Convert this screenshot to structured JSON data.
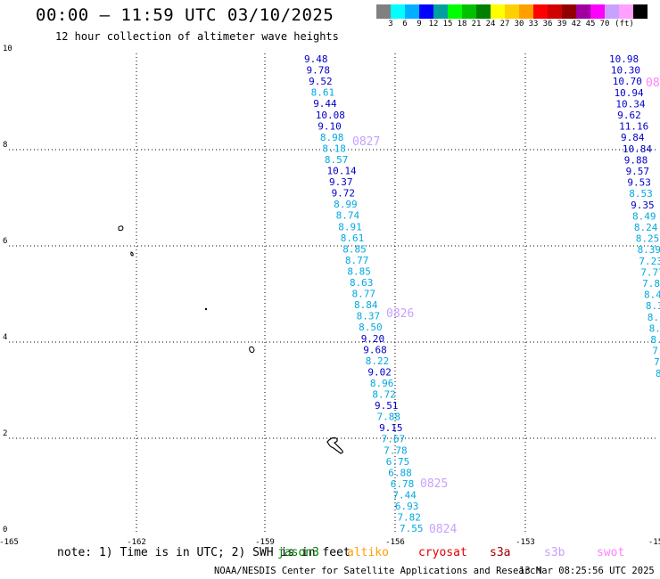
{
  "header": {
    "title": "00:00 – 11:59 UTC 03/10/2025",
    "subtitle": "12 hour collection of altimeter wave heights"
  },
  "colorbar": {
    "colors": [
      "#808080",
      "#00ffff",
      "#00b0ff",
      "#0000ff",
      "#00a0a0",
      "#00ff00",
      "#00c000",
      "#008000",
      "#ffff00",
      "#ffd000",
      "#ffa000",
      "#ff0000",
      "#d00000",
      "#900000",
      "#a000a0",
      "#ff00ff",
      "#c8a0ff",
      "#ffa0ff",
      "#000000"
    ],
    "labels": [
      "3",
      "6",
      "9",
      "12",
      "15",
      "18",
      "21",
      "24",
      "27",
      "30",
      "33",
      "36",
      "39",
      "42",
      "45",
      "70",
      "(ft)"
    ]
  },
  "axes": {
    "y_ticks": [
      "10",
      "8",
      "6",
      "4",
      "2",
      "0"
    ],
    "x_ticks": [
      "-165",
      "-162",
      "-159",
      "-156",
      "-153",
      "-15"
    ]
  },
  "track_left": [
    {
      "v": "9.48",
      "c": "#0000c8"
    },
    {
      "v": "9.78",
      "c": "#0000c8"
    },
    {
      "v": "9.52",
      "c": "#0000c8"
    },
    {
      "v": "8.61",
      "c": "#00a8e0"
    },
    {
      "v": "9.44",
      "c": "#0000c8"
    },
    {
      "v": "10.08",
      "c": "#0000c8"
    },
    {
      "v": "9.10",
      "c": "#0000c8"
    },
    {
      "v": "8.98",
      "c": "#00a8e0"
    },
    {
      "v": "8.18",
      "c": "#00a8e0"
    },
    {
      "v": "8.57",
      "c": "#00a8e0"
    },
    {
      "v": "10.14",
      "c": "#0000c8"
    },
    {
      "v": "9.37",
      "c": "#0000c8"
    },
    {
      "v": "9.72",
      "c": "#0000c8"
    },
    {
      "v": "8.99",
      "c": "#00a8e0"
    },
    {
      "v": "8.74",
      "c": "#00a8e0"
    },
    {
      "v": "8.91",
      "c": "#00a8e0"
    },
    {
      "v": "8.61",
      "c": "#00a8e0"
    },
    {
      "v": "8.85",
      "c": "#00a8e0"
    },
    {
      "v": "8.77",
      "c": "#00a8e0"
    },
    {
      "v": "8.85",
      "c": "#00a8e0"
    },
    {
      "v": "8.63",
      "c": "#00a8e0"
    },
    {
      "v": "8.77",
      "c": "#00a8e0"
    },
    {
      "v": "8.84",
      "c": "#00a8e0"
    },
    {
      "v": "8.37",
      "c": "#00a8e0"
    },
    {
      "v": "8.50",
      "c": "#00a8e0"
    },
    {
      "v": "9.20",
      "c": "#0000c8"
    },
    {
      "v": "9.68",
      "c": "#0000c8"
    },
    {
      "v": "8.22",
      "c": "#00a8e0"
    },
    {
      "v": "9.02",
      "c": "#0000c8"
    },
    {
      "v": "8.96",
      "c": "#00a8e0"
    },
    {
      "v": "8.72",
      "c": "#00a8e0"
    },
    {
      "v": "9.51",
      "c": "#0000c8"
    },
    {
      "v": "7.88",
      "c": "#00a8e0"
    },
    {
      "v": "9.15",
      "c": "#0000c8"
    },
    {
      "v": "7.67",
      "c": "#00a8e0"
    },
    {
      "v": "7.78",
      "c": "#00a8e0"
    },
    {
      "v": "6.75",
      "c": "#00a8e0"
    },
    {
      "v": "6.88",
      "c": "#00a8e0"
    },
    {
      "v": "6.78",
      "c": "#00a8e0"
    },
    {
      "v": "7.44",
      "c": "#00a8e0"
    },
    {
      "v": "6.93",
      "c": "#00a8e0"
    },
    {
      "v": "7.82",
      "c": "#00a8e0"
    },
    {
      "v": "7.55",
      "c": "#00a8e0"
    }
  ],
  "track_right": [
    {
      "v": "10.98",
      "c": "#0000c8"
    },
    {
      "v": "10.30",
      "c": "#0000c8"
    },
    {
      "v": "10.70",
      "c": "#0000c8"
    },
    {
      "v": "10.94",
      "c": "#0000c8"
    },
    {
      "v": "10.34",
      "c": "#0000c8"
    },
    {
      "v": "9.62",
      "c": "#0000c8"
    },
    {
      "v": "11.16",
      "c": "#0000c8"
    },
    {
      "v": "9.84",
      "c": "#0000c8"
    },
    {
      "v": "10.84",
      "c": "#0000c8"
    },
    {
      "v": "9.88",
      "c": "#0000c8"
    },
    {
      "v": "9.57",
      "c": "#0000c8"
    },
    {
      "v": "9.53",
      "c": "#0000c8"
    },
    {
      "v": "8.53",
      "c": "#00a8e0"
    },
    {
      "v": "9.35",
      "c": "#0000c8"
    },
    {
      "v": "8.49",
      "c": "#00a8e0"
    },
    {
      "v": "8.24",
      "c": "#00a8e0"
    },
    {
      "v": "8.25",
      "c": "#00a8e0"
    },
    {
      "v": "8.39",
      "c": "#00a8e0"
    },
    {
      "v": "7.23",
      "c": "#00a8e0"
    },
    {
      "v": "7.77",
      "c": "#00a8e0"
    },
    {
      "v": "7.8",
      "c": "#00a8e0"
    },
    {
      "v": "8.4",
      "c": "#00a8e0"
    },
    {
      "v": "8.3",
      "c": "#00a8e0"
    },
    {
      "v": "8.",
      "c": "#00a8e0"
    },
    {
      "v": "8.",
      "c": "#00a8e0"
    },
    {
      "v": "8.",
      "c": "#00a8e0"
    },
    {
      "v": "7.",
      "c": "#00a8e0"
    },
    {
      "v": "7",
      "c": "#00a8e0"
    },
    {
      "v": "8",
      "c": "#00a8e0"
    }
  ],
  "time_labels": [
    {
      "t": "0827",
      "c": "#c8a0ff"
    },
    {
      "t": "0826",
      "c": "#c8a0ff"
    },
    {
      "t": "0825",
      "c": "#c8a0ff"
    },
    {
      "t": "0824",
      "c": "#c8a0ff"
    },
    {
      "t": "08",
      "c": "#ff80ff"
    }
  ],
  "footer": {
    "note": "note: 1) Time is in UTC; 2) SWH is in feet",
    "legend": [
      {
        "name": "jason3",
        "color": "#008000"
      },
      {
        "name": "altiko",
        "color": "#ffa000"
      },
      {
        "name": "cryosat",
        "color": "#e00000"
      },
      {
        "name": "s3a",
        "color": "#a00000"
      },
      {
        "name": "s3b",
        "color": "#c8a0ff"
      },
      {
        "name": "swot",
        "color": "#ff80ff"
      }
    ],
    "credit": "NOAA/NESDIS Center for Satellite Applications and Research",
    "timestamp": "13 Mar 08:25:56 UTC 2025"
  }
}
